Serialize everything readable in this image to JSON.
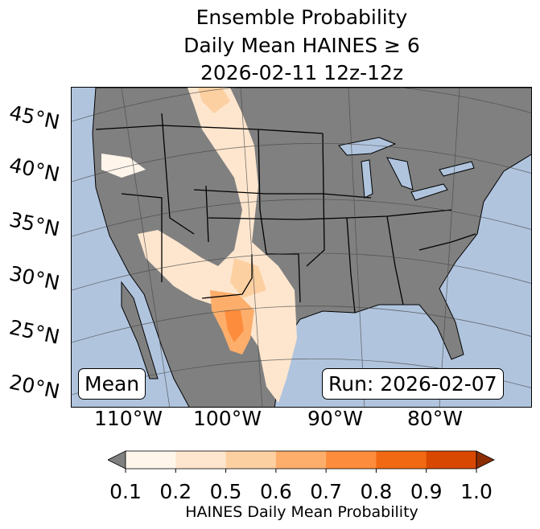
{
  "title": {
    "line1": "Ensemble Probability",
    "line2": "Daily Mean HAINES ≥ 6",
    "line3": "2026-02-11 12z-12z"
  },
  "map": {
    "lat_labels": [
      "45°N",
      "40°N",
      "35°N",
      "30°N",
      "25°N",
      "20°N"
    ],
    "lon_labels": [
      "110°W",
      "100°W",
      "90°W",
      "80°W"
    ],
    "colors": {
      "ocean": "#b0c4de",
      "land": "#808080",
      "borders": "#000000"
    }
  },
  "annotations": {
    "mean": "Mean",
    "run": "Run: 2026-02-07"
  },
  "colorbar": {
    "ticks": [
      "0.1",
      "0.2",
      "0.5",
      "0.6",
      "0.7",
      "0.8",
      "0.9",
      "1.0"
    ],
    "colors": [
      "#fff5eb",
      "#fee6ce",
      "#fdd0a2",
      "#fdae6b",
      "#fd8d3c",
      "#f16913",
      "#d94801"
    ],
    "under_color": "#808080",
    "over_color": "#8c2d04",
    "label": "HAINES Daily Mean Probability"
  }
}
